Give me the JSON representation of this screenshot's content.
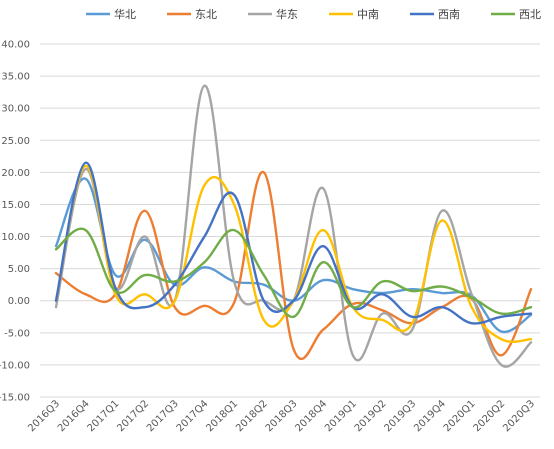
{
  "chart_data": {
    "type": "line",
    "categories": [
      "2016Q3",
      "2016Q4",
      "2017Q1",
      "2017Q2",
      "2017Q3",
      "2017Q4",
      "2018Q1",
      "2018Q2",
      "2018Q3",
      "2018Q4",
      "2019Q1",
      "2019Q2",
      "2019Q3",
      "2019Q4",
      "2020Q1",
      "2020Q2",
      "2020Q3"
    ],
    "y_ticks": [
      "40.00",
      "35.00",
      "30.00",
      "25.00",
      "20.00",
      "15.00",
      "10.00",
      "5.00",
      "0.00",
      "-5.00",
      "-10.00",
      "-15.00"
    ],
    "ylim": [
      -15,
      40
    ],
    "grid": "horizontal",
    "legend_position": "top",
    "series": [
      {
        "name": "华北",
        "color": "#5b9bd5",
        "values": [
          8.5,
          19,
          4,
          9.5,
          2.5,
          5.2,
          3,
          2.5,
          0,
          3.2,
          1.8,
          1.2,
          1.8,
          1.2,
          0.8,
          -4.8,
          -2.2
        ]
      },
      {
        "name": "东北",
        "color": "#ed7d31",
        "values": [
          4.3,
          1,
          1,
          14,
          -1,
          -0.8,
          -0.3,
          20,
          -7.5,
          -4.5,
          -0.5,
          -1.5,
          -3.5,
          -1,
          0.3,
          -8.5,
          1.8
        ]
      },
      {
        "name": "华东",
        "color": "#a5a5a5",
        "values": [
          -1,
          20.5,
          2,
          10,
          0,
          33.5,
          3,
          0,
          0,
          17.5,
          -8.5,
          -2,
          -4.5,
          14,
          1,
          -10,
          -6.5
        ]
      },
      {
        "name": "中南",
        "color": "#ffc000",
        "values": [
          0,
          21,
          1,
          1,
          0,
          18,
          15,
          -3,
          0,
          11,
          -1,
          -3,
          -3.5,
          12.5,
          -1,
          -6,
          -6
        ]
      },
      {
        "name": "西南",
        "color": "#4472c4",
        "values": [
          0,
          21.5,
          2,
          -1,
          2.5,
          10,
          16.5,
          0,
          0,
          8.5,
          -1,
          1,
          -2.5,
          -1,
          -3.5,
          -2.5,
          -2
        ]
      },
      {
        "name": "西北",
        "color": "#70ad47",
        "values": [
          8,
          11,
          1.5,
          4,
          3,
          6,
          11,
          4,
          -2.5,
          6,
          -1,
          3,
          1.5,
          2.2,
          0.5,
          -2,
          -1
        ]
      }
    ]
  }
}
